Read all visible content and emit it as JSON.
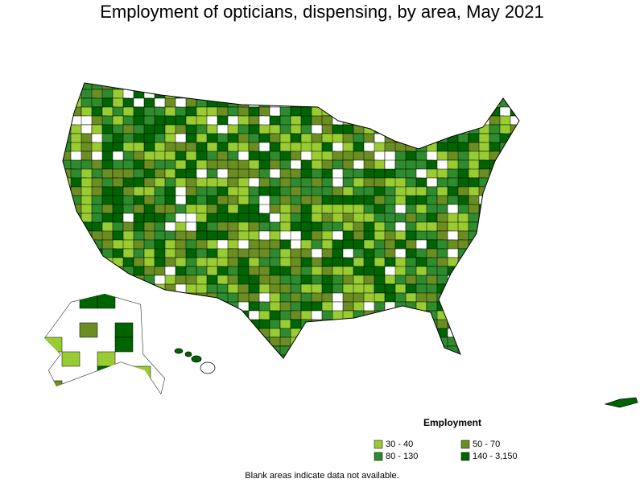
{
  "title": "Employment of opticians, dispensing, by area, May 2021",
  "legend": {
    "title": "Employment",
    "items": [
      {
        "label": "30 - 40",
        "color": "#99cc33"
      },
      {
        "label": "50 - 70",
        "color": "#6b8e23"
      },
      {
        "label": "80 - 130",
        "color": "#2e8b2e"
      },
      {
        "label": "140 - 3,150",
        "color": "#006400"
      }
    ]
  },
  "note": "Blank areas indicate data not available."
}
